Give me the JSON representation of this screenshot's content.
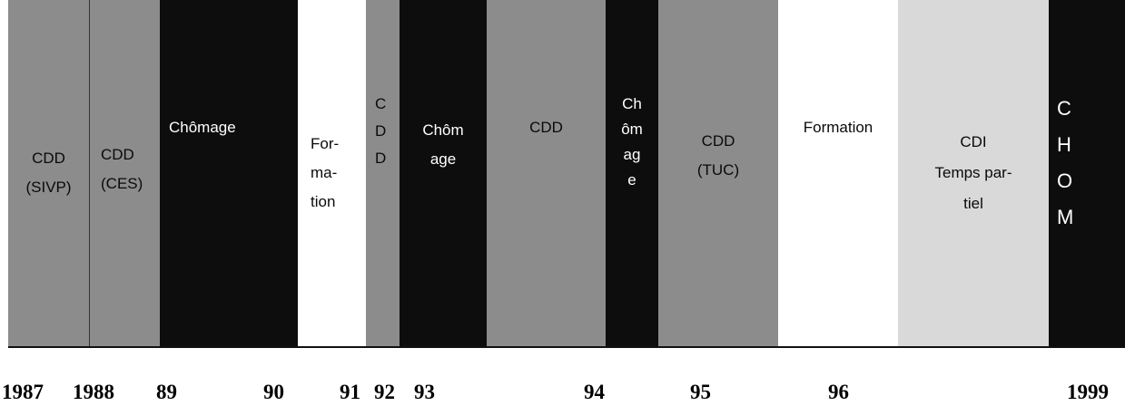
{
  "segments": [
    {
      "label": "CDD\n(SIVP)",
      "kind": "gray"
    },
    {
      "label": "CDD\n(CES)",
      "kind": "gray"
    },
    {
      "label": "Chômage",
      "kind": "dark"
    },
    {
      "label": "For-\nma-\ntion",
      "kind": "white"
    },
    {
      "label": "C\nD\nD",
      "kind": "gray"
    },
    {
      "label": "Chôm\nage",
      "kind": "dark"
    },
    {
      "label": "CDD",
      "kind": "gray"
    },
    {
      "label": "Ch\nôm\nag\ne",
      "kind": "dark"
    },
    {
      "label": "CDD\n(TUC)",
      "kind": "gray"
    },
    {
      "label": "Formation",
      "kind": "white"
    },
    {
      "label": "CDI\nTemps par-\ntiel",
      "kind": "light"
    },
    {
      "label": "C\nH\nO\nM",
      "kind": "dark"
    }
  ],
  "years": [
    "1987",
    "1988",
    "89",
    "90",
    "91",
    "92",
    "93",
    "94",
    "95",
    "96",
    "1999"
  ],
  "colors": {
    "dark": "#0d0d0d",
    "gray": "#8c8c8c",
    "white": "#ffffff",
    "light": "#d9d9d9"
  }
}
